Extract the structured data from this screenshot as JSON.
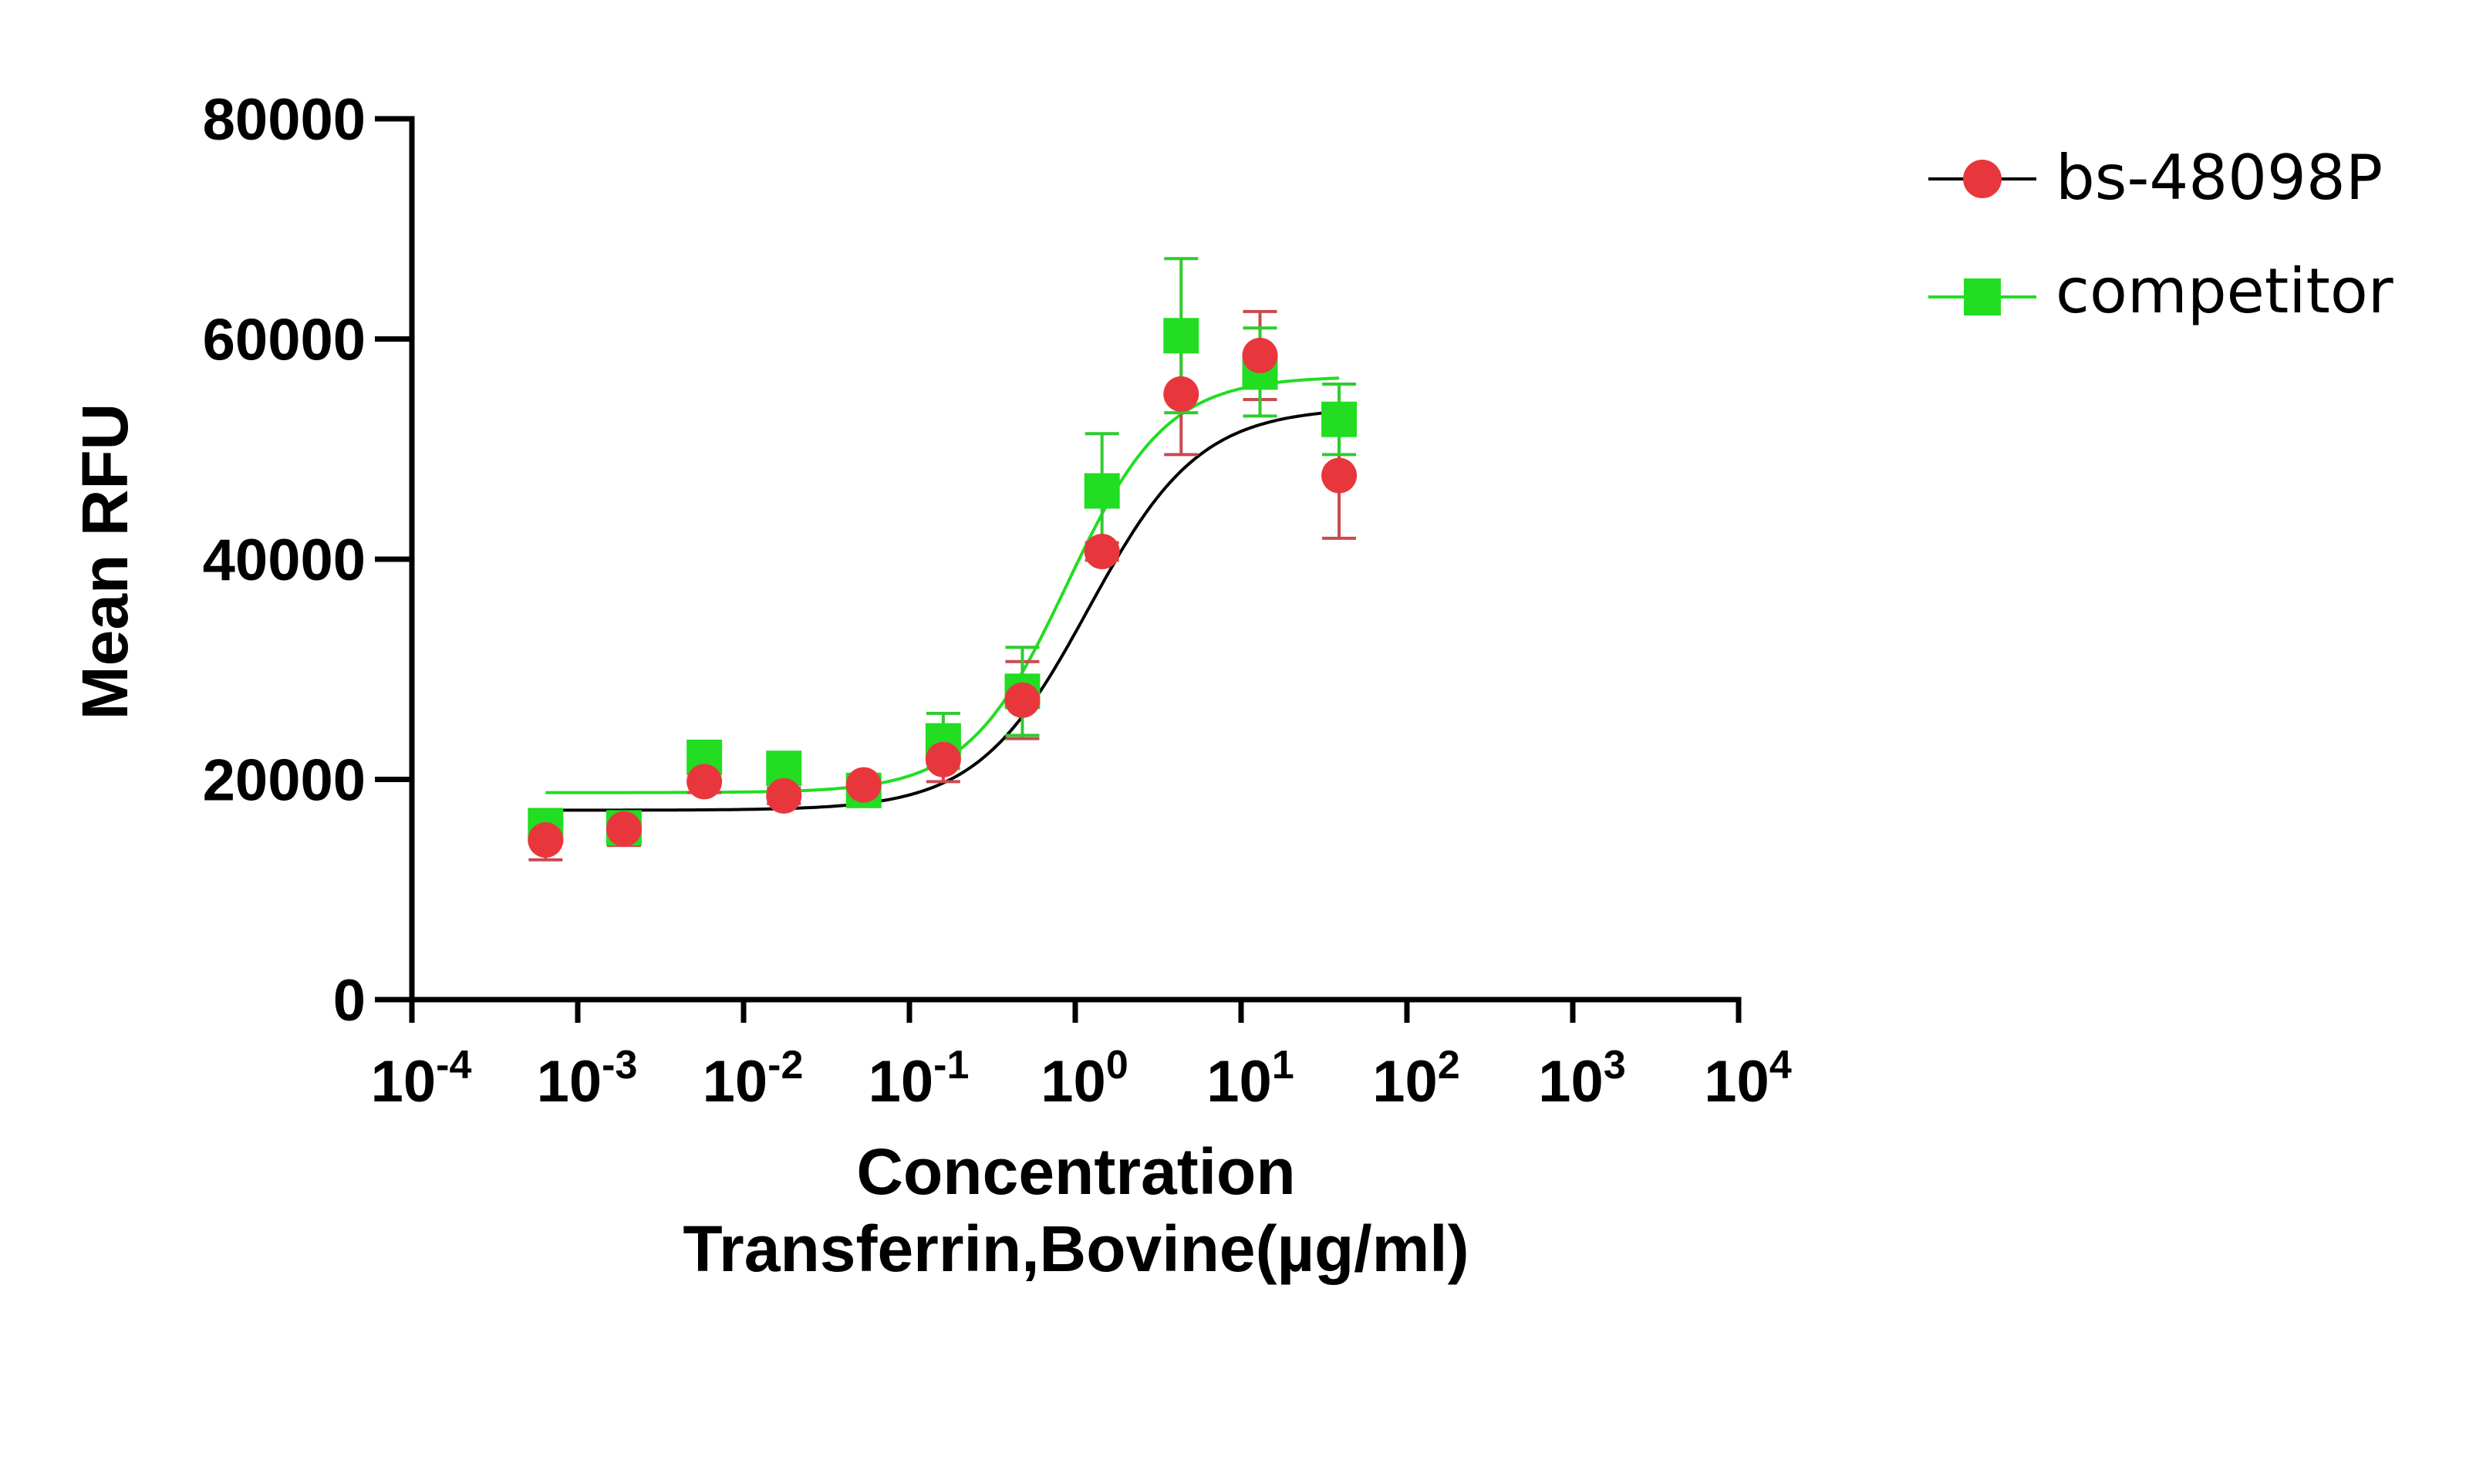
{
  "chart_data": {
    "type": "scatter",
    "xscale": "log",
    "xlim": [
      0.0001,
      10000
    ],
    "ylim": [
      0,
      80000
    ],
    "ylabel": "Mean RFU",
    "xlabel_line1": "Concentration",
    "xlabel_line2": "Transferrin,Bovine(µg/ml)",
    "y_ticks": [
      0,
      20000,
      40000,
      60000,
      80000
    ],
    "y_tick_labels": [
      "0",
      "20000",
      "40000",
      "60000",
      "80000"
    ],
    "x_ticks": [
      0.0001,
      0.001,
      0.01,
      0.1,
      1,
      10,
      100,
      1000,
      10000
    ],
    "x_tick_labels": [
      {
        "base": "10",
        "exp": "-4"
      },
      {
        "base": "10",
        "exp": "-3"
      },
      {
        "base": "10",
        "exp": "-2"
      },
      {
        "base": "10",
        "exp": "-1"
      },
      {
        "base": "10",
        "exp": "0"
      },
      {
        "base": "10",
        "exp": "1"
      },
      {
        "base": "10",
        "exp": "2"
      },
      {
        "base": "10",
        "exp": "3"
      },
      {
        "base": "10",
        "exp": "4"
      }
    ],
    "legend_position": "top-right",
    "series": [
      {
        "name": "bs-48098P",
        "color": "#e8373c",
        "curve_color": "#000000",
        "marker": "circle",
        "x": [
          0.00064,
          0.0019,
          0.0058,
          0.0175,
          0.053,
          0.16,
          0.48,
          1.45,
          4.35,
          13.0,
          39.0
        ],
        "y": [
          14500,
          15500,
          19800,
          18500,
          19500,
          21800,
          27200,
          40700,
          55000,
          58500,
          47600
        ],
        "err": [
          1800,
          1500,
          1000,
          700,
          800,
          2000,
          3500,
          800,
          5500,
          4000,
          5700
        ],
        "fit": {
          "bottom": 17200,
          "top": 53800,
          "logec50": 0.08,
          "hill": 1.3
        }
      },
      {
        "name": "competitor",
        "color": "#22dd22",
        "curve_color": "#22dd22",
        "marker": "square",
        "x": [
          0.00064,
          0.0019,
          0.0058,
          0.0175,
          0.053,
          0.16,
          0.48,
          1.45,
          4.35,
          13.0,
          39.0
        ],
        "y": [
          15800,
          15600,
          22000,
          21000,
          19000,
          23500,
          28000,
          46200,
          60300,
          57000,
          52700
        ],
        "err": [
          1000,
          1200,
          800,
          900,
          700,
          2500,
          4000,
          5200,
          7000,
          4000,
          3200
        ],
        "fit": {
          "bottom": 18800,
          "top": 56600,
          "logec50": -0.05,
          "hill": 1.45
        }
      }
    ]
  }
}
